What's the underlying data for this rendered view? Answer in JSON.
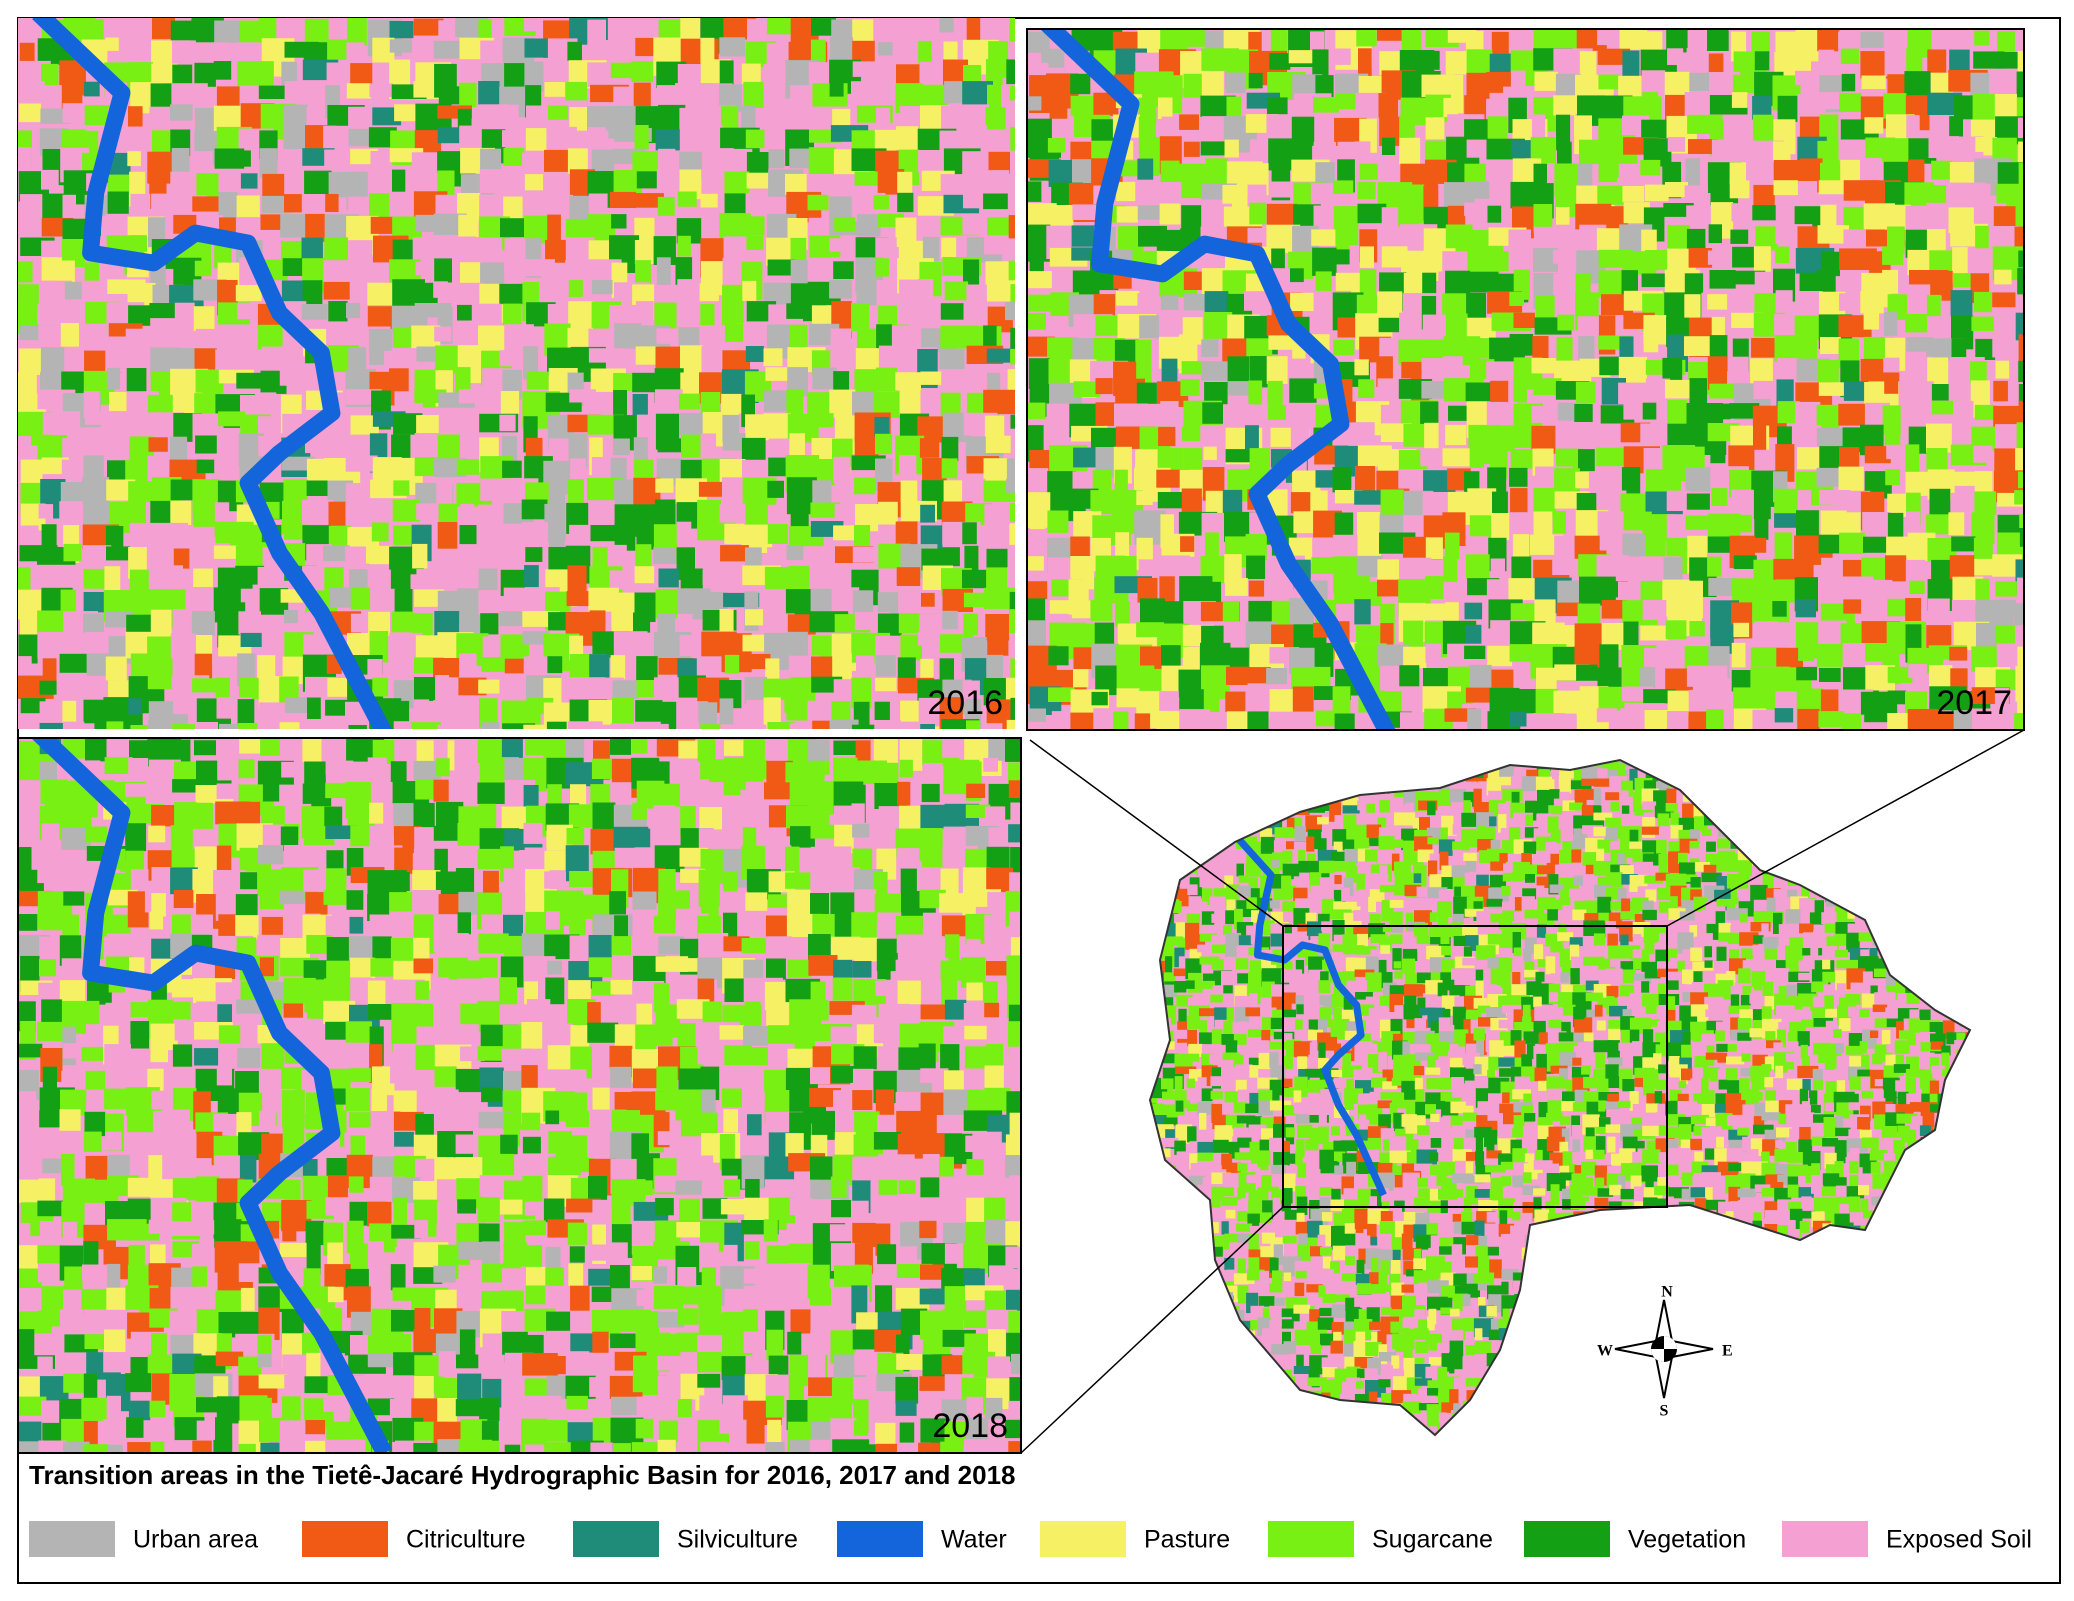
{
  "panels": [
    {
      "year": "2016"
    },
    {
      "year": "2017"
    },
    {
      "year": "2018"
    }
  ],
  "compass": {
    "north": "N",
    "south": "S",
    "east": "E",
    "west": "W"
  },
  "title": "Transition areas in the Tietê-Jacaré Hydrographic Basin for 2016, 2017 and 2018",
  "legend": [
    {
      "name": "Urban area",
      "color": "#b4b4b4"
    },
    {
      "name": "Citriculture",
      "color": "#f05a14"
    },
    {
      "name": "Silviculture",
      "color": "#1e8c78"
    },
    {
      "name": "Water",
      "color": "#1464dc"
    },
    {
      "name": "Pasture",
      "color": "#f5f064"
    },
    {
      "name": "Sugarcane",
      "color": "#78f014"
    },
    {
      "name": "Vegetation",
      "color": "#14a014"
    },
    {
      "name": "Exposed Soil",
      "color": "#f5a0d2"
    }
  ]
}
